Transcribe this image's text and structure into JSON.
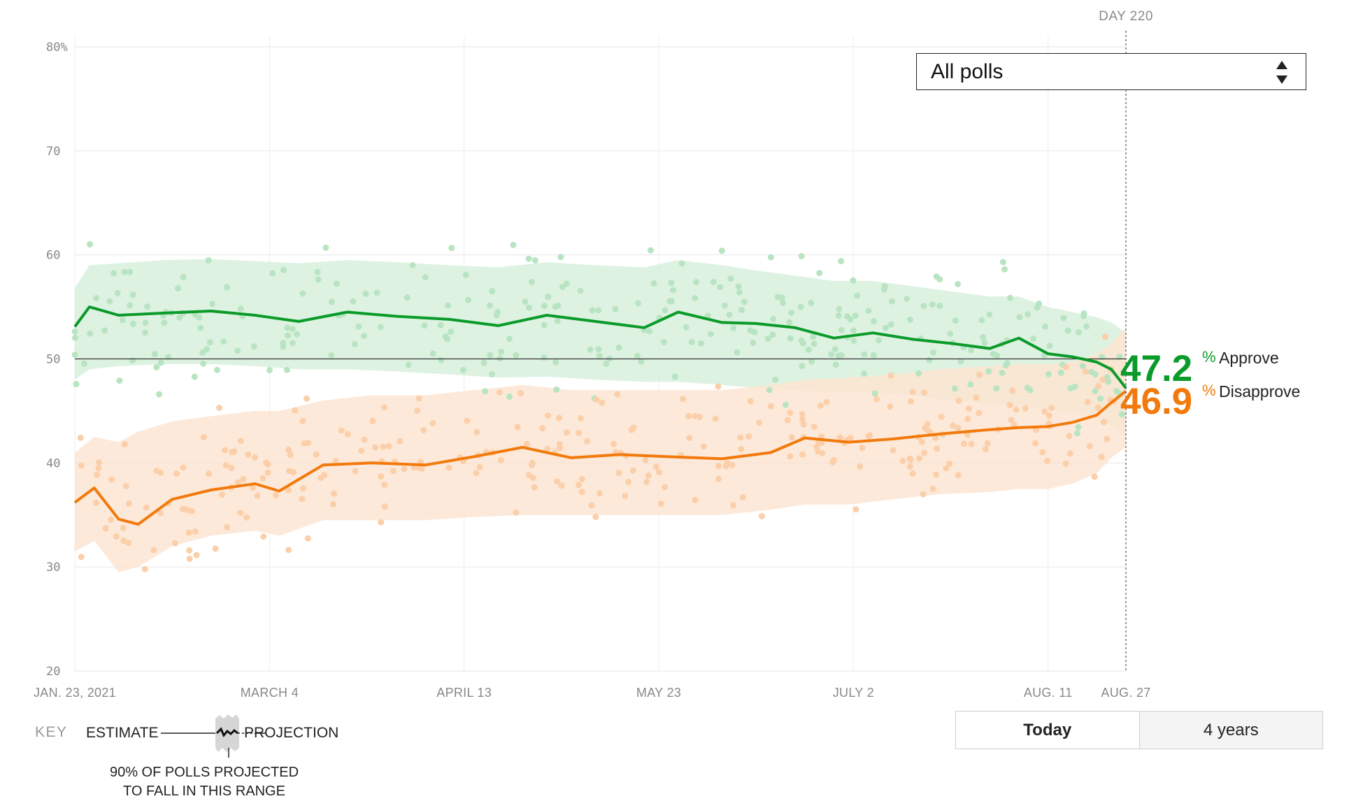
{
  "chart_data": {
    "type": "line",
    "ylim": [
      20,
      80
    ],
    "yticks": [
      "80%",
      "70",
      "60",
      "50",
      "40",
      "30",
      "20"
    ],
    "x_ticks": [
      "JAN. 23, 2021",
      "MARCH 4",
      "APRIL 13",
      "MAY 23",
      "JULY 2",
      "AUG. 11",
      "AUG. 27"
    ],
    "day_marker": "DAY 220",
    "grid": "on",
    "reference_line": 50,
    "series": [
      {
        "name": "Approve",
        "color": "#0a9b2a",
        "current": "47.2",
        "x": [
          "2021-01-23",
          "2021-01-26",
          "2021-02-01",
          "2021-02-10",
          "2021-02-20",
          "2021-03-01",
          "2021-03-10",
          "2021-03-20",
          "2021-03-30",
          "2021-04-10",
          "2021-04-20",
          "2021-04-30",
          "2021-05-10",
          "2021-05-20",
          "2021-05-27",
          "2021-06-05",
          "2021-06-12",
          "2021-06-20",
          "2021-06-28",
          "2021-07-06",
          "2021-07-14",
          "2021-07-22",
          "2021-07-30",
          "2021-08-05",
          "2021-08-11",
          "2021-08-16",
          "2021-08-21",
          "2021-08-24",
          "2021-08-27"
        ],
        "values": [
          53.1,
          55.0,
          54.2,
          54.4,
          54.6,
          54.2,
          53.6,
          54.5,
          54.1,
          53.8,
          53.2,
          54.2,
          53.6,
          53.0,
          54.5,
          53.5,
          53.4,
          53.0,
          52.0,
          52.5,
          51.9,
          51.5,
          51.0,
          52.0,
          50.5,
          50.2,
          49.7,
          49.0,
          47.2
        ],
        "band_upper": [
          56.8,
          59.0,
          59.2,
          59.5,
          59.6,
          59.4,
          59.2,
          59.5,
          59.3,
          59.0,
          58.8,
          59.3,
          59.0,
          58.8,
          59.5,
          59.0,
          58.5,
          58.0,
          57.5,
          57.5,
          57.0,
          56.5,
          56.0,
          56.0,
          55.0,
          54.5,
          54.0,
          53.5,
          52.5
        ],
        "band_lower": [
          48.0,
          49.0,
          49.3,
          49.5,
          49.5,
          49.3,
          49.0,
          49.0,
          48.8,
          48.5,
          48.2,
          48.3,
          48.0,
          47.8,
          47.8,
          47.5,
          47.2,
          47.0,
          46.8,
          46.8,
          46.5,
          46.0,
          45.8,
          45.5,
          45.2,
          44.8,
          44.5,
          43.5,
          42.5
        ]
      },
      {
        "name": "Disapprove",
        "color": "#f27a0c",
        "current": "46.9",
        "x": [
          "2021-01-23",
          "2021-01-27",
          "2021-02-01",
          "2021-02-05",
          "2021-02-12",
          "2021-02-20",
          "2021-03-01",
          "2021-03-06",
          "2021-03-15",
          "2021-03-25",
          "2021-04-05",
          "2021-04-15",
          "2021-04-25",
          "2021-05-05",
          "2021-05-15",
          "2021-05-25",
          "2021-06-05",
          "2021-06-15",
          "2021-06-22",
          "2021-07-01",
          "2021-07-10",
          "2021-07-20",
          "2021-07-30",
          "2021-08-05",
          "2021-08-11",
          "2021-08-16",
          "2021-08-21",
          "2021-08-24",
          "2021-08-27"
        ],
        "values": [
          36.2,
          37.6,
          34.6,
          34.1,
          36.5,
          37.4,
          38.0,
          37.3,
          39.8,
          40.0,
          39.8,
          40.6,
          41.5,
          40.5,
          40.8,
          40.6,
          40.4,
          41.0,
          42.4,
          42.0,
          42.3,
          42.8,
          43.2,
          43.4,
          43.5,
          43.9,
          44.6,
          45.8,
          46.9
        ],
        "band_upper": [
          41.0,
          42.5,
          42.0,
          43.0,
          44.0,
          44.5,
          45.0,
          45.0,
          46.0,
          46.5,
          46.5,
          47.0,
          47.5,
          47.0,
          47.0,
          47.0,
          47.0,
          47.5,
          48.0,
          48.2,
          48.5,
          49.0,
          49.3,
          49.5,
          49.5,
          49.7,
          50.5,
          51.5,
          53.0
        ],
        "band_lower": [
          31.5,
          32.5,
          29.5,
          30.0,
          32.0,
          33.0,
          33.5,
          33.0,
          34.5,
          34.5,
          34.5,
          34.8,
          35.0,
          35.0,
          35.0,
          35.0,
          35.0,
          35.5,
          36.0,
          36.0,
          36.5,
          37.0,
          37.2,
          37.5,
          37.5,
          38.0,
          39.0,
          40.5,
          41.5
        ]
      }
    ]
  },
  "dropdown": {
    "selected": "All polls"
  },
  "labels": {
    "approve_value": "47.2",
    "approve_pct": "%",
    "approve_name": "Approve",
    "disapprove_value": "46.9",
    "disapprove_pct": "%",
    "disapprove_name": "Disapprove"
  },
  "key": {
    "title": "KEY",
    "estimate": "ESTIMATE",
    "projection": "PROJECTION",
    "note_line1": "90% OF POLLS PROJECTED",
    "note_line2": "TO FALL IN THIS RANGE"
  },
  "toggle": {
    "today": "Today",
    "four_years": "4 years"
  },
  "colors": {
    "approve": "#0a9b2a",
    "approve_band": "#d6efdb",
    "approve_dots": "#b9e4c2",
    "disapprove": "#f27a0c",
    "disapprove_band": "#fde4d0",
    "disapprove_dots": "#fbcfa9"
  }
}
